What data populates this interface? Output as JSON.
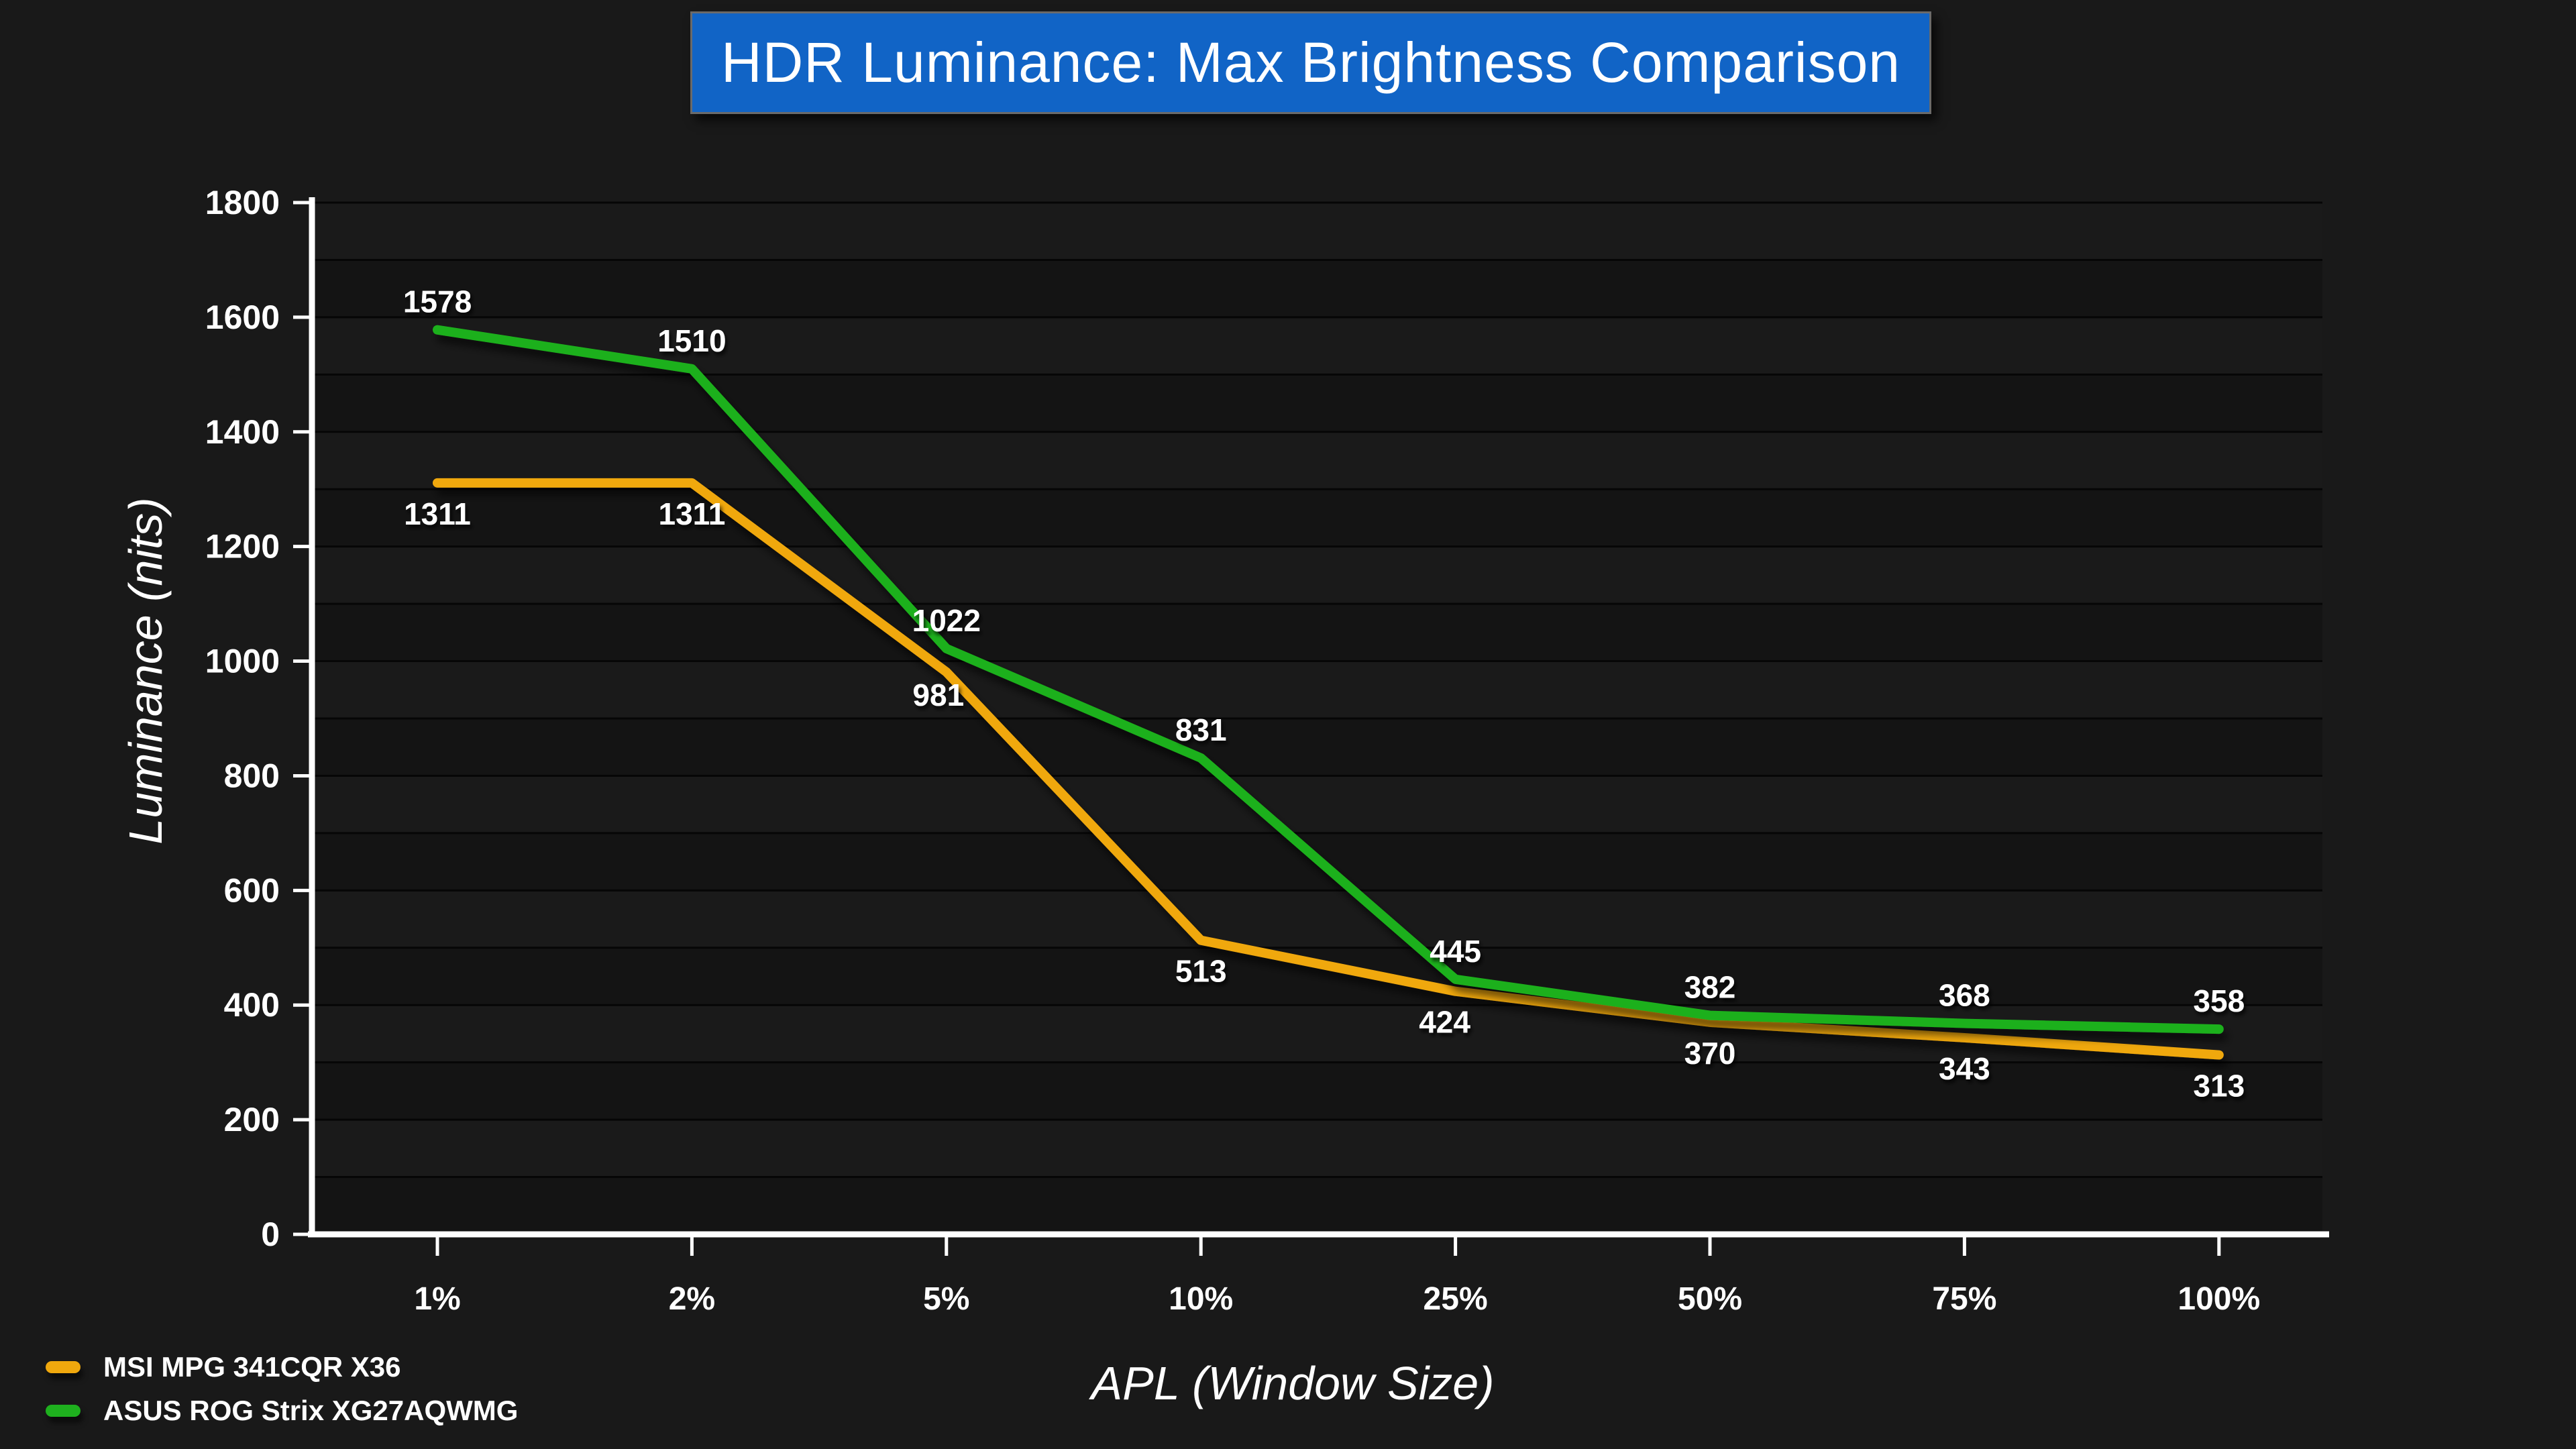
{
  "title": "HDR Luminance: Max Brightness Comparison",
  "colors": {
    "background": "#191919",
    "title_bg": "#1164C6",
    "title_border": "#6a6a6a",
    "band_light": "#1A1A1A",
    "band_dark": "#141414",
    "gridline": "#060606",
    "axis": "#FFFFFF",
    "text": "#FFFFFF",
    "series_msi": "#F0A80D",
    "series_asus": "#1EB01E"
  },
  "chart_data": {
    "type": "line",
    "title": "HDR Luminance: Max Brightness Comparison",
    "xlabel": "APL (Window Size)",
    "ylabel": "Luminance (nits)",
    "categories": [
      "1%",
      "2%",
      "5%",
      "10%",
      "25%",
      "50%",
      "75%",
      "100%"
    ],
    "series": [
      {
        "name": "MSI MPG 341CQR X36",
        "color": "#F0A80D",
        "values": [
          1311,
          1311,
          981,
          513,
          424,
          370,
          343,
          313
        ],
        "label_position": "below"
      },
      {
        "name": "ASUS ROG Strix XG27AQWMG",
        "color": "#1EB01E",
        "values": [
          1578,
          1510,
          1022,
          831,
          445,
          382,
          368,
          358
        ],
        "label_position": "above"
      }
    ],
    "ylim": [
      0,
      1800
    ],
    "ytick_step": 200,
    "ytick_labels": [
      "0",
      "200",
      "400",
      "600",
      "800",
      "1000",
      "1200",
      "1400",
      "1600",
      "1800"
    ],
    "minor_grid_step": 100,
    "grid": "horizontal",
    "legend_position": "bottom-left",
    "data_labels_visible": true
  },
  "legend": {
    "items": [
      {
        "label": "MSI MPG 341CQR X36",
        "color": "#F0A80D"
      },
      {
        "label": "ASUS ROG Strix XG27AQWMG",
        "color": "#1EB01E"
      }
    ]
  }
}
